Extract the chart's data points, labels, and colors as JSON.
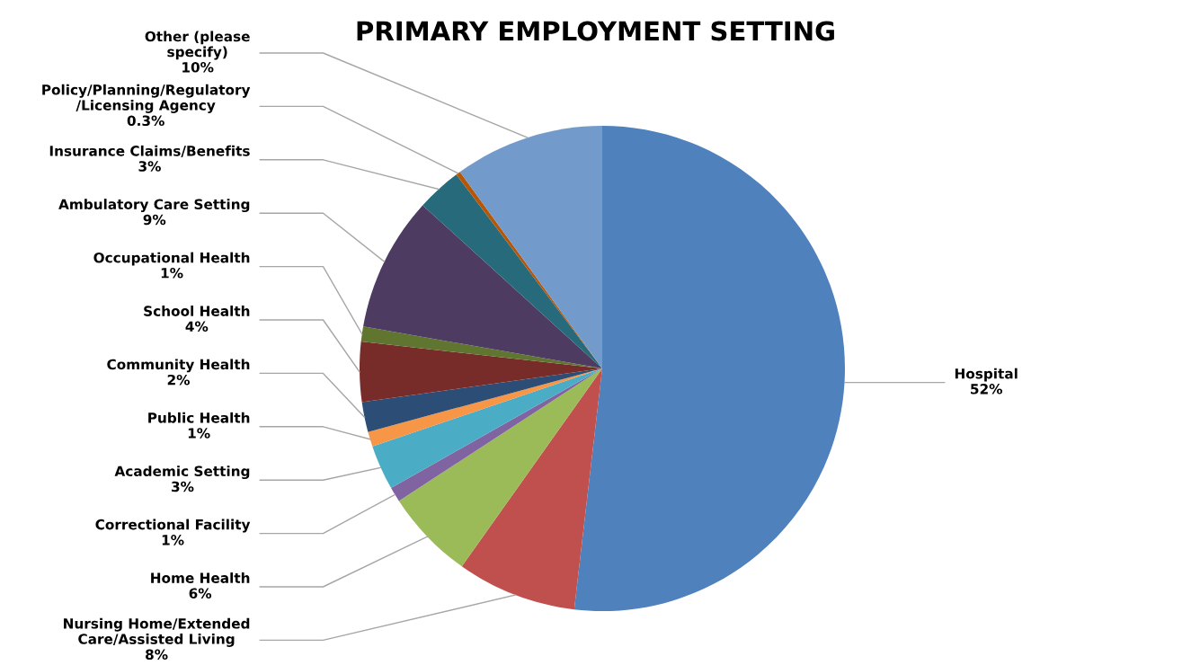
{
  "chart_data": {
    "type": "pie",
    "title": "PRIMARY EMPLOYMENT SETTING",
    "categories": [
      "Hospital",
      "Nursing Home/Extended\nCare/Assisted Living",
      "Home Health",
      "Correctional Facility",
      "Academic Setting",
      "Public Health",
      "Community Health",
      "School Health",
      "Occupational Health",
      "Ambulatory Care Setting",
      "Insurance Claims/Benefits",
      "Policy/Planning/Regulatory\n/Licensing Agency",
      "Other (please\nspecify)"
    ],
    "values": [
      52,
      8,
      6,
      1,
      3,
      1,
      2,
      4,
      1,
      9,
      3,
      0.3,
      10
    ],
    "value_labels": [
      "52%",
      "8%",
      "6%",
      "1%",
      "3%",
      "1%",
      "2%",
      "4%",
      "1%",
      "9%",
      "3%",
      "0.3%",
      "10%"
    ],
    "colors": [
      "#4f81bd",
      "#c0504d",
      "#9bbb59",
      "#8064a2",
      "#4bacc6",
      "#f79646",
      "#2c4d75",
      "#772c2a",
      "#5f7530",
      "#4d3b62",
      "#276a7c",
      "#b65708",
      "#729aca"
    ]
  }
}
